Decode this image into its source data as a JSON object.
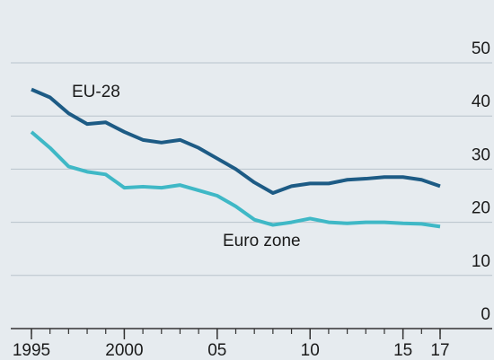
{
  "chart_data": {
    "type": "line",
    "x": [
      1995,
      1996,
      1997,
      1998,
      1999,
      2000,
      2001,
      2002,
      2003,
      2004,
      2005,
      2006,
      2007,
      2008,
      2009,
      2010,
      2011,
      2012,
      2013,
      2014,
      2015,
      2016,
      2017
    ],
    "series": [
      {
        "name": "EU-28",
        "color": "#1d5b85",
        "values": [
          45,
          43.5,
          40.5,
          38.5,
          38.8,
          37,
          35.5,
          35,
          35.5,
          34,
          32,
          30,
          27.5,
          25.5,
          26.8,
          27.3,
          27.3,
          28,
          28.2,
          28.5,
          28.5,
          28,
          26.8
        ]
      },
      {
        "name": "Euro zone",
        "color": "#3fb8c6",
        "values": [
          37,
          34,
          30.5,
          29.5,
          29,
          26.5,
          26.7,
          26.5,
          27,
          26,
          25,
          23,
          20.5,
          19.5,
          20,
          20.7,
          20,
          19.8,
          20,
          20,
          19.8,
          19.7,
          19.2
        ]
      }
    ],
    "xlim": [
      1995,
      2017
    ],
    "xticks": [
      1995,
      2000,
      {
        "value": 2005,
        "label": "05"
      },
      {
        "value": 2010,
        "label": "10"
      },
      {
        "value": 2015,
        "label": "15"
      },
      {
        "value": 2017,
        "label": "17"
      }
    ],
    "ylim": [
      0,
      50
    ],
    "yticks": [
      0,
      10,
      20,
      30,
      40,
      50
    ],
    "grid": true
  }
}
